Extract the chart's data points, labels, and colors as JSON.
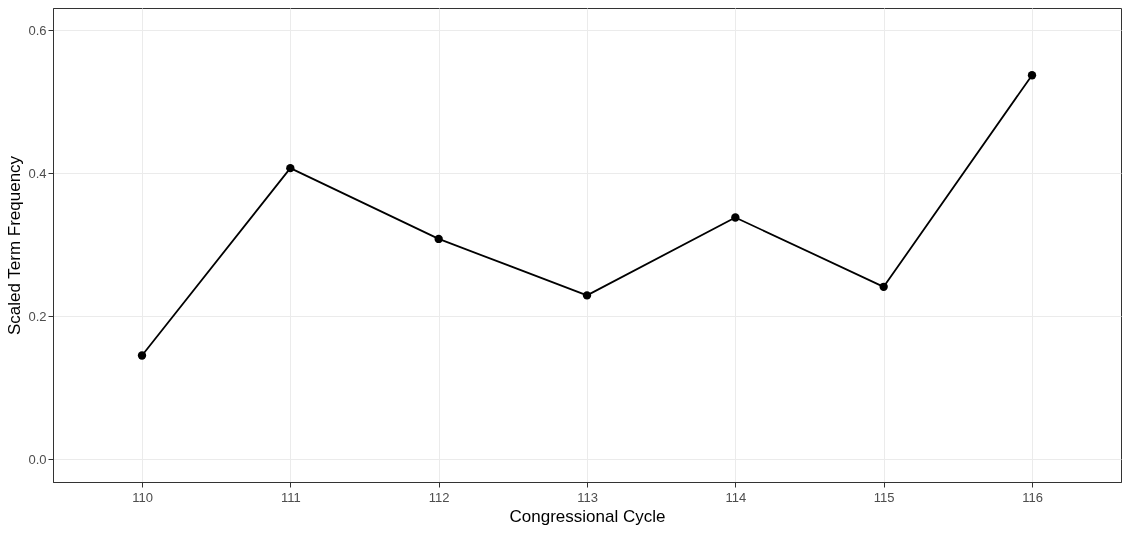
{
  "chart_data": {
    "type": "line",
    "xlabel": "Congressional Cycle",
    "ylabel": "Scaled Term Frequency",
    "categories": [
      "110",
      "111",
      "112",
      "113",
      "114",
      "115",
      "116"
    ],
    "series": [
      {
        "color": "#000000",
        "values": [
          0.145,
          0.407,
          0.308,
          0.229,
          0.338,
          0.241,
          0.537
        ]
      }
    ],
    "ylim": [
      -0.032,
      0.631
    ],
    "yticks": [
      {
        "value": 0,
        "label": "0.0"
      },
      0.2,
      0.4,
      0.6
    ],
    "grid": true,
    "marker": "circle",
    "line_style": "solid"
  }
}
